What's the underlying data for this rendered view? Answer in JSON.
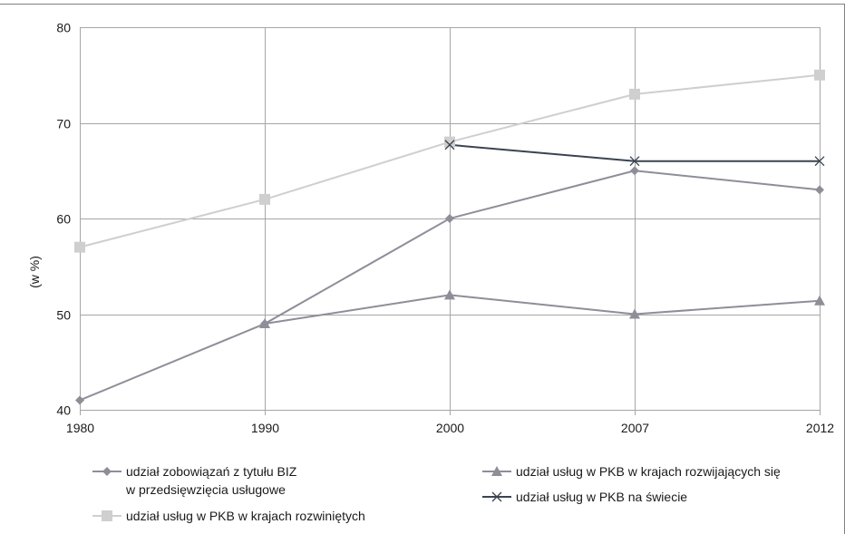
{
  "chart_data": {
    "type": "line",
    "title": "",
    "xlabel": "",
    "ylabel": "(w %)",
    "x": [
      "1980",
      "1990",
      "2000",
      "2007",
      "2012"
    ],
    "ylim": [
      40,
      80
    ],
    "yticks": [
      "40",
      "50",
      "60",
      "70",
      "80"
    ],
    "grid": true,
    "legend_position": "bottom",
    "series": [
      {
        "name_line1": "udział zobowiązań z tytułu BIZ",
        "name_line2": "w przedsięwzięcia usługowe",
        "marker": "diamond",
        "color": "#8e8e99",
        "values": [
          41,
          49,
          60,
          65,
          63
        ]
      },
      {
        "name_line1": "udział usług w PKB w krajach rozwiniętych",
        "name_line2": "",
        "marker": "square",
        "color": "#cfcfcf",
        "values": [
          57,
          62,
          68,
          73,
          75
        ]
      },
      {
        "name_line1": "udział usług w PKB w krajach rozwijających się",
        "name_line2": "",
        "marker": "triangle",
        "color": "#8e8e99",
        "values": [
          null,
          49,
          52,
          50,
          51.4
        ]
      },
      {
        "name_line1": "udział usług w PKB na świecie",
        "name_line2": "",
        "marker": "x",
        "color": "#3a4450",
        "values": [
          null,
          null,
          67.7,
          66,
          66
        ]
      }
    ]
  }
}
